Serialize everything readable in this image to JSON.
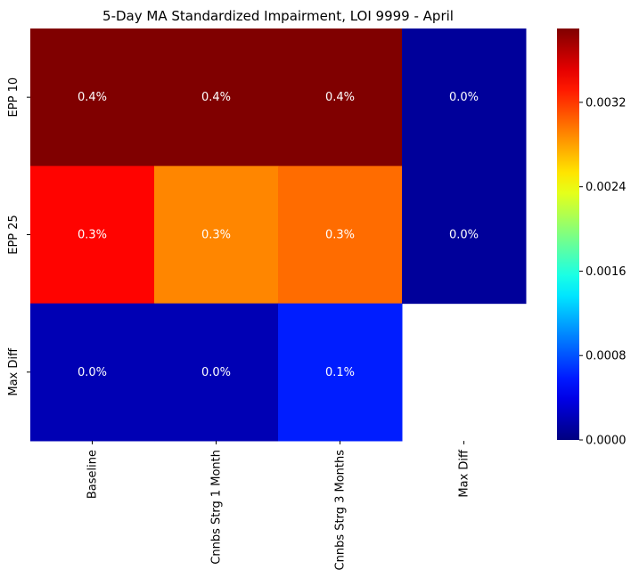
{
  "chart_data": {
    "type": "heatmap",
    "title": "5-Day MA Standardized Impairment, LOI 9999 - April",
    "xlabel": "",
    "ylabel": "",
    "x_categories": [
      "Baseline",
      "Cnnbs Strg 1 Month",
      "Cnnbs Strg 3 Months",
      "Max Diff"
    ],
    "y_categories": [
      "EPP 10",
      "EPP 25",
      "Max Diff"
    ],
    "values": [
      [
        0.0039,
        0.0039,
        0.0039,
        0.0001
      ],
      [
        0.0034,
        0.0029,
        0.003,
        0.0001
      ],
      [
        0.0002,
        0.0002,
        0.0006,
        null
      ]
    ],
    "cell_labels": [
      [
        "0.4%",
        "0.4%",
        "0.4%",
        "0.0%"
      ],
      [
        "0.3%",
        "0.3%",
        "0.3%",
        "0.0%"
      ],
      [
        "0.0%",
        "0.0%",
        "0.1%",
        ""
      ]
    ],
    "colormap": "jet",
    "vmin": 0.0,
    "vmax": 0.0039,
    "colorbar_ticks": [
      "0.0000",
      "0.0008",
      "0.0016",
      "0.0024",
      "0.0032"
    ],
    "colorbar_tick_values": [
      0.0,
      0.0008,
      0.0016,
      0.0024,
      0.0032
    ],
    "label_color": "#ffffff",
    "grid": false
  }
}
